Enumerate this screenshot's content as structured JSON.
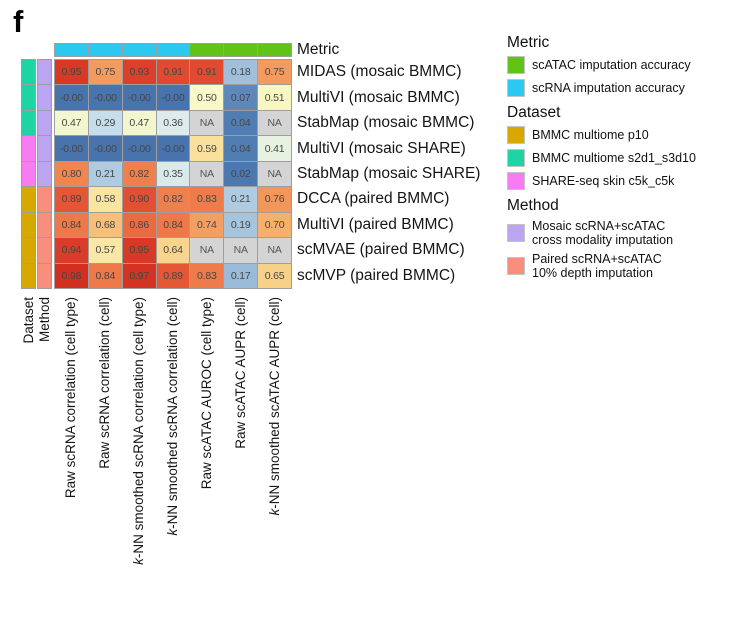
{
  "panel_label": "f",
  "colors": {
    "metric_scRNA": "#2bc8f0",
    "metric_scATAC": "#60c315",
    "dataset_bmmc_p10": "#d7a800",
    "dataset_bmmc_s2d1_s3d10": "#1fd4a4",
    "dataset_share_seq_skin": "#f97bf2",
    "method_mosaic": "#bba4f0",
    "method_paired": "#f98e7d",
    "na_cell": "#d4d4d4",
    "grid_border": "#9e9e9e"
  },
  "heatmap": {
    "top_annotation_label": "Metric",
    "side_labels": {
      "dataset": "Dataset",
      "method": "Method"
    },
    "na_text": "NA",
    "columns": [
      {
        "italic_prefix": "",
        "text": "Raw scRNA correlation (cell type)",
        "metric": "metric_scRNA"
      },
      {
        "italic_prefix": "",
        "text": "Raw scRNA correlation (cell)",
        "metric": "metric_scRNA"
      },
      {
        "italic_prefix": "k",
        "text": "-NN smoothed scRNA correlation (cell type)",
        "metric": "metric_scRNA"
      },
      {
        "italic_prefix": "k",
        "text": "-NN smoothed scRNA correlation (cell)",
        "metric": "metric_scRNA"
      },
      {
        "italic_prefix": "",
        "text": "Raw scATAC AUROC (cell type)",
        "metric": "metric_scATAC"
      },
      {
        "italic_prefix": "",
        "text": "Raw scATAC AUPR (cell)",
        "metric": "metric_scATAC"
      },
      {
        "italic_prefix": "k",
        "text": "-NN smoothed scATAC AUPR (cell)",
        "metric": "metric_scATAC"
      }
    ],
    "rows": [
      {
        "label": "MIDAS (mosaic BMMC)",
        "dataset": "dataset_bmmc_s2d1_s3d10",
        "method": "method_mosaic",
        "values": [
          "0.95",
          "0.75",
          "0.93",
          "0.91",
          "0.91",
          "0.18",
          "0.75"
        ]
      },
      {
        "label": "MultiVI (mosaic BMMC)",
        "dataset": "dataset_bmmc_s2d1_s3d10",
        "method": "method_mosaic",
        "values": [
          "-0.00",
          "-0.00",
          "-0.00",
          "-0.00",
          "0.50",
          "0.07",
          "0.51"
        ]
      },
      {
        "label": "StabMap (mosaic BMMC)",
        "dataset": "dataset_bmmc_s2d1_s3d10",
        "method": "method_mosaic",
        "values": [
          "0.47",
          "0.29",
          "0.47",
          "0.36",
          "NA",
          "0.04",
          "NA"
        ]
      },
      {
        "label": "MultiVI (mosaic SHARE)",
        "dataset": "dataset_share_seq_skin",
        "method": "method_mosaic",
        "values": [
          "-0.00",
          "-0.00",
          "-0.00",
          "-0.00",
          "0.59",
          "0.04",
          "0.41"
        ]
      },
      {
        "label": "StabMap (mosaic SHARE)",
        "dataset": "dataset_share_seq_skin",
        "method": "method_mosaic",
        "values": [
          "0.80",
          "0.21",
          "0.82",
          "0.35",
          "NA",
          "0.02",
          "NA"
        ]
      },
      {
        "label": "DCCA (paired BMMC)",
        "dataset": "dataset_bmmc_p10",
        "method": "method_paired",
        "values": [
          "0.89",
          "0.58",
          "0.90",
          "0.82",
          "0.83",
          "0.21",
          "0.76"
        ]
      },
      {
        "label": "MultiVI (paired BMMC)",
        "dataset": "dataset_bmmc_p10",
        "method": "method_paired",
        "values": [
          "0.84",
          "0.68",
          "0.86",
          "0.84",
          "0.74",
          "0.19",
          "0.70"
        ]
      },
      {
        "label": "scMVAE (paired BMMC)",
        "dataset": "dataset_bmmc_p10",
        "method": "method_paired",
        "values": [
          "0.94",
          "0.57",
          "0.95",
          "0.64",
          "NA",
          "NA",
          "NA"
        ]
      },
      {
        "label": "scMVP (paired BMMC)",
        "dataset": "dataset_bmmc_p10",
        "method": "method_paired",
        "values": [
          "0.98",
          "0.84",
          "0.97",
          "0.89",
          "0.83",
          "0.17",
          "0.65"
        ]
      }
    ]
  },
  "legend": {
    "sections": [
      {
        "title": "Metric",
        "items": [
          {
            "color": "#60c315",
            "lines": [
              "scATAC imputation accuracy"
            ]
          },
          {
            "color": "#2bc8f0",
            "lines": [
              "scRNA imputation accuracy"
            ]
          }
        ]
      },
      {
        "title": "Dataset",
        "items": [
          {
            "color": "#d7a800",
            "lines": [
              "BMMC multiome p10"
            ]
          },
          {
            "color": "#1fd4a4",
            "lines": [
              "BMMC multiome s2d1_s3d10"
            ]
          },
          {
            "color": "#f97bf2",
            "lines": [
              "SHARE-seq skin c5k_c5k"
            ]
          }
        ]
      },
      {
        "title": "Method",
        "items": [
          {
            "color": "#bba4f0",
            "lines": [
              "Mosaic scRNA+scATAC",
              "cross modality imputation"
            ]
          },
          {
            "color": "#f98e7d",
            "lines": [
              "Paired scRNA+scATAC",
              "10% depth imputation"
            ]
          }
        ]
      }
    ]
  },
  "chart_data": {
    "type": "heatmap",
    "title": "f",
    "rows": [
      "MIDAS (mosaic BMMC)",
      "MultiVI (mosaic BMMC)",
      "StabMap (mosaic BMMC)",
      "MultiVI (mosaic SHARE)",
      "StabMap (mosaic SHARE)",
      "DCCA (paired BMMC)",
      "MultiVI (paired BMMC)",
      "scMVAE (paired BMMC)",
      "scMVP (paired BMMC)"
    ],
    "columns": [
      "Raw scRNA correlation (cell type)",
      "Raw scRNA correlation (cell)",
      "k-NN smoothed scRNA correlation (cell type)",
      "k-NN smoothed scRNA correlation (cell)",
      "Raw scATAC AUROC (cell type)",
      "Raw scATAC AUPR (cell)",
      "k-NN smoothed scATAC AUPR (cell)"
    ],
    "values": [
      [
        0.95,
        0.75,
        0.93,
        0.91,
        0.91,
        0.18,
        0.75
      ],
      [
        -0.0,
        -0.0,
        -0.0,
        -0.0,
        0.5,
        0.07,
        0.51
      ],
      [
        0.47,
        0.29,
        0.47,
        0.36,
        null,
        0.04,
        null
      ],
      [
        -0.0,
        -0.0,
        -0.0,
        -0.0,
        0.59,
        0.04,
        0.41
      ],
      [
        0.8,
        0.21,
        0.82,
        0.35,
        null,
        0.02,
        null
      ],
      [
        0.89,
        0.58,
        0.9,
        0.82,
        0.83,
        0.21,
        0.76
      ],
      [
        0.84,
        0.68,
        0.86,
        0.84,
        0.74,
        0.19,
        0.7
      ],
      [
        0.94,
        0.57,
        0.95,
        0.64,
        null,
        null,
        null
      ],
      [
        0.98,
        0.84,
        0.97,
        0.89,
        0.83,
        0.17,
        0.65
      ]
    ],
    "na_label": "NA",
    "value_range": [
      0,
      1
    ],
    "column_metric": [
      "scRNA imputation accuracy",
      "scRNA imputation accuracy",
      "scRNA imputation accuracy",
      "scRNA imputation accuracy",
      "scATAC imputation accuracy",
      "scATAC imputation accuracy",
      "scATAC imputation accuracy"
    ],
    "row_dataset": [
      "BMMC multiome s2d1_s3d10",
      "BMMC multiome s2d1_s3d10",
      "BMMC multiome s2d1_s3d10",
      "SHARE-seq skin c5k_c5k",
      "SHARE-seq skin c5k_c5k",
      "BMMC multiome p10",
      "BMMC multiome p10",
      "BMMC multiome p10",
      "BMMC multiome p10"
    ],
    "row_method": [
      "Mosaic scRNA+scATAC cross modality imputation",
      "Mosaic scRNA+scATAC cross modality imputation",
      "Mosaic scRNA+scATAC cross modality imputation",
      "Mosaic scRNA+scATAC cross modality imputation",
      "Mosaic scRNA+scATAC cross modality imputation",
      "Paired scRNA+scATAC 10% depth imputation",
      "Paired scRNA+scATAC 10% depth imputation",
      "Paired scRNA+scATAC 10% depth imputation",
      "Paired scRNA+scATAC 10% depth imputation"
    ],
    "legend_position": "right",
    "grid": true
  }
}
